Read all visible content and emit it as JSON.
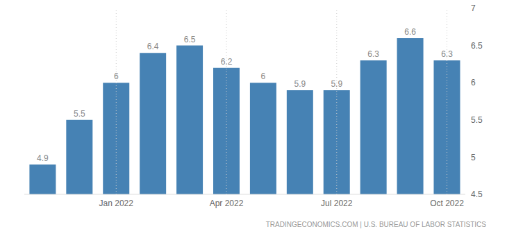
{
  "chart_data": {
    "type": "bar",
    "source": "TRADINGECONOMICS.COM | U.S. BUREAU OF LABOR STATISTICS",
    "categories": [
      null,
      null,
      "Jan 2022",
      null,
      null,
      "Apr 2022",
      null,
      null,
      "Jul 2022",
      null,
      null,
      "Oct 2022"
    ],
    "values": [
      4.9,
      5.5,
      6,
      6.4,
      6.5,
      6.2,
      6,
      5.9,
      5.9,
      6.3,
      6.6,
      6.3
    ],
    "color": "#4682b4",
    "ylim": [
      4.5,
      7
    ],
    "yticks": [
      4.5,
      5,
      5.5,
      6,
      6.5,
      7
    ],
    "grid": true,
    "data_labels": true
  }
}
